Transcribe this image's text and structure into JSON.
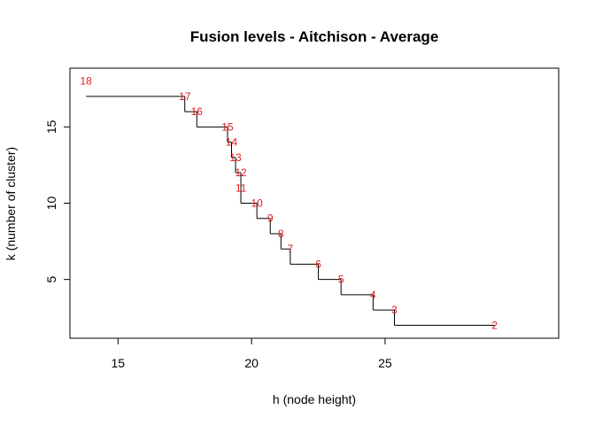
{
  "chart_data": {
    "type": "line",
    "subtype": "step",
    "title": "Fusion levels - Aitchison - Average",
    "xlabel": "h (node height)",
    "ylabel": "k (number of cluster)",
    "xlim": [
      13.2,
      31.5
    ],
    "ylim": [
      1.15,
      18.85
    ],
    "xticks": [
      15,
      20,
      25
    ],
    "yticks": [
      5,
      10,
      15
    ],
    "line_color": "#000000",
    "label_color": "#e31a1c",
    "points": [
      {
        "h": 13.8,
        "k": 17,
        "label": "18",
        "label_k": 18
      },
      {
        "h": 17.5,
        "k": 16,
        "label": "17",
        "label_k": 17
      },
      {
        "h": 17.95,
        "k": 15,
        "label": "16",
        "label_k": 16
      },
      {
        "h": 19.1,
        "k": 14,
        "label": "15",
        "label_k": 15
      },
      {
        "h": 19.25,
        "k": 13,
        "label": "14",
        "label_k": 14
      },
      {
        "h": 19.4,
        "k": 12,
        "label": "13",
        "label_k": 13
      },
      {
        "h": 19.6,
        "k": 11,
        "label": "12",
        "label_k": 12
      },
      {
        "h": 19.6,
        "k": 10,
        "label": "11",
        "label_k": 11
      },
      {
        "h": 20.2,
        "k": 9,
        "label": "10",
        "label_k": 10
      },
      {
        "h": 20.7,
        "k": 8,
        "label": "9",
        "label_k": 9
      },
      {
        "h": 21.1,
        "k": 7,
        "label": "8",
        "label_k": 8
      },
      {
        "h": 21.45,
        "k": 6,
        "label": "7",
        "label_k": 7
      },
      {
        "h": 22.5,
        "k": 5,
        "label": "6",
        "label_k": 6
      },
      {
        "h": 23.35,
        "k": 4,
        "label": "5",
        "label_k": 5
      },
      {
        "h": 24.55,
        "k": 3,
        "label": "4",
        "label_k": 4
      },
      {
        "h": 25.35,
        "k": 2,
        "label": "3",
        "label_k": 3
      },
      {
        "h": 29.1,
        "k": 2,
        "label": "2",
        "label_k": 2
      }
    ]
  }
}
